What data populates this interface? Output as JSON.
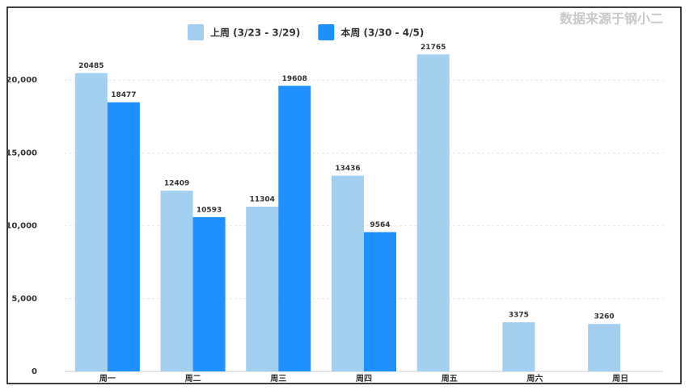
{
  "chart_data": {
    "type": "bar",
    "source": "数据来源于钢小二",
    "categories": [
      "周一",
      "周二",
      "周三",
      "周四",
      "周五",
      "周六",
      "周日"
    ],
    "series": [
      {
        "name": "上周 (3/23 - 3/29)",
        "color": "#a3cff0",
        "values": [
          20485,
          12409,
          11304,
          13436,
          21765,
          3375,
          3260
        ]
      },
      {
        "name": "本周 (3/30 - 4/5)",
        "color": "#1e90ff",
        "values": [
          18477,
          10593,
          19608,
          9564,
          null,
          null,
          null
        ]
      }
    ],
    "ylim": [
      0,
      25000
    ],
    "yticks": [
      0,
      {
        "value": 5000,
        "label": "5,000"
      },
      {
        "value": 10000,
        "label": "10,000"
      },
      {
        "value": 15000,
        "label": "15,000"
      },
      {
        "value": 20000,
        "label": "20,000"
      }
    ],
    "grid": true
  }
}
